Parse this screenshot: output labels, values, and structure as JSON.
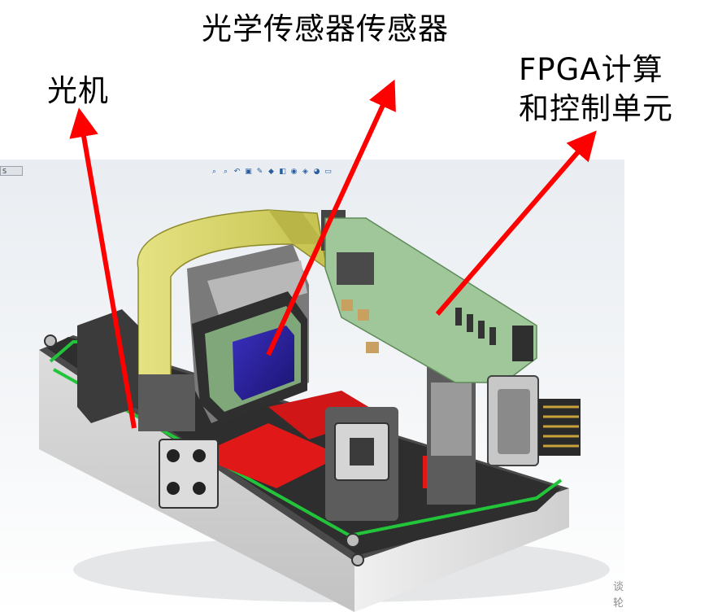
{
  "labels": {
    "optics": "光机",
    "sensor": "光学传感器传感器",
    "fpga_line1": "FPGA计算",
    "fpga_line2": "和控制单元"
  },
  "viewport": {
    "camera_tag": "S CAM",
    "toolbar_icons": [
      "zoom-fit-icon",
      "zoom-area-icon",
      "previous-view-icon",
      "section-view-icon",
      "dynamic-annotation-icon",
      "view-orientation-icon",
      "display-style-icon",
      "hide-show-icon",
      "edit-appearance-icon",
      "apply-scene-icon",
      "view-settings-icon"
    ],
    "watermark": "谈\n轮"
  },
  "colors": {
    "arrow": "#ff0000",
    "pcb": "#9fc79a",
    "flex_cable": "#d6d36a",
    "housing": "#e2e2e2",
    "green_seal": "#22c53a",
    "red_part": "#e01818",
    "sensor_die": "#2a1f9c"
  }
}
